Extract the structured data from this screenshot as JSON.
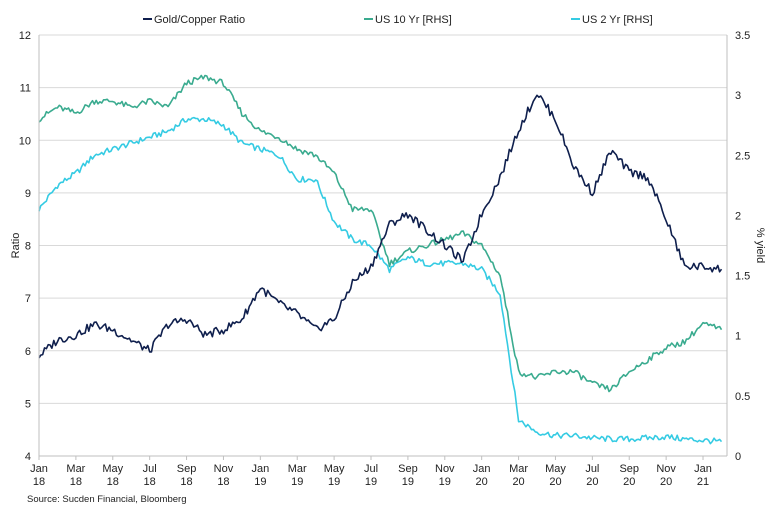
{
  "chart_data": {
    "type": "line",
    "legend": [
      {
        "name": "Gold/Copper Ratio",
        "color": "#0f1f4d"
      },
      {
        "name": "US 10 Yr [RHS]",
        "color": "#3aab8f"
      },
      {
        "name": "US 2 Yr [RHS]",
        "color": "#35cbe3"
      }
    ],
    "legend_position": "top",
    "ylabel_left": "Ratio",
    "ylabel_right": "% yield",
    "ylim_left": [
      4,
      12
    ],
    "ylim_right": [
      0,
      3.5
    ],
    "yticks_left": [
      "4",
      "5",
      "6",
      "7",
      "8",
      "9",
      "10",
      "11",
      "12"
    ],
    "yticks_right": [
      "0",
      "0.5",
      "1",
      "1.5",
      "2",
      "2.5",
      "3",
      "3.5"
    ],
    "grid": "horizontal",
    "x_ticks": [
      [
        "Jan",
        "18"
      ],
      [
        "Mar",
        "18"
      ],
      [
        "May",
        "18"
      ],
      [
        "Jul",
        "18"
      ],
      [
        "Sep",
        "18"
      ],
      [
        "Nov",
        "18"
      ],
      [
        "Jan",
        "19"
      ],
      [
        "Mar",
        "19"
      ],
      [
        "May",
        "19"
      ],
      [
        "Jul",
        "19"
      ],
      [
        "Sep",
        "19"
      ],
      [
        "Nov",
        "19"
      ],
      [
        "Jan",
        "20"
      ],
      [
        "Mar",
        "20"
      ],
      [
        "May",
        "20"
      ],
      [
        "Jul",
        "20"
      ],
      [
        "Sep",
        "20"
      ],
      [
        "Nov",
        "20"
      ],
      [
        "Jan",
        "21"
      ]
    ],
    "series": [
      {
        "name": "Gold/Copper Ratio",
        "axis": "left",
        "color": "#0f1f4d",
        "points": [
          [
            "2018-01",
            5.9
          ],
          [
            "2018-02",
            6.2
          ],
          [
            "2018-03",
            6.3
          ],
          [
            "2018-04",
            6.5
          ],
          [
            "2018-05",
            6.4
          ],
          [
            "2018-06",
            6.2
          ],
          [
            "2018-07",
            6.0
          ],
          [
            "2018-08",
            6.5
          ],
          [
            "2018-09",
            6.6
          ],
          [
            "2018-10",
            6.3
          ],
          [
            "2018-11",
            6.4
          ],
          [
            "2018-12",
            6.6
          ],
          [
            "2019-01",
            7.2
          ],
          [
            "2019-02",
            6.9
          ],
          [
            "2019-03",
            6.7
          ],
          [
            "2019-04",
            6.4
          ],
          [
            "2019-05",
            6.6
          ],
          [
            "2019-06",
            7.3
          ],
          [
            "2019-07",
            7.6
          ],
          [
            "2019-08",
            8.4
          ],
          [
            "2019-09",
            8.6
          ],
          [
            "2019-10",
            8.3
          ],
          [
            "2019-11",
            8.0
          ],
          [
            "2019-12",
            7.7
          ],
          [
            "2020-01",
            8.6
          ],
          [
            "2020-02",
            9.3
          ],
          [
            "2020-03",
            10.2
          ],
          [
            "2020-04",
            10.9
          ],
          [
            "2020-05",
            10.4
          ],
          [
            "2020-06",
            9.5
          ],
          [
            "2020-07",
            9.0
          ],
          [
            "2020-08",
            9.8
          ],
          [
            "2020-09",
            9.4
          ],
          [
            "2020-10",
            9.3
          ],
          [
            "2020-11",
            8.5
          ],
          [
            "2020-12",
            7.6
          ],
          [
            "2021-01",
            7.6
          ],
          [
            "2021-02",
            7.55
          ]
        ]
      },
      {
        "name": "US 10 Yr [RHS]",
        "axis": "right",
        "color": "#3aab8f",
        "points": [
          [
            "2018-01",
            2.8
          ],
          [
            "2018-02",
            2.9
          ],
          [
            "2018-03",
            2.85
          ],
          [
            "2018-04",
            2.95
          ],
          [
            "2018-05",
            2.95
          ],
          [
            "2018-06",
            2.9
          ],
          [
            "2018-07",
            2.95
          ],
          [
            "2018-08",
            2.9
          ],
          [
            "2018-09",
            3.1
          ],
          [
            "2018-10",
            3.15
          ],
          [
            "2018-11",
            3.1
          ],
          [
            "2018-12",
            2.85
          ],
          [
            "2019-01",
            2.7
          ],
          [
            "2019-02",
            2.65
          ],
          [
            "2019-03",
            2.55
          ],
          [
            "2019-04",
            2.5
          ],
          [
            "2019-05",
            2.35
          ],
          [
            "2019-06",
            2.05
          ],
          [
            "2019-07",
            2.05
          ],
          [
            "2019-08",
            1.6
          ],
          [
            "2019-09",
            1.7
          ],
          [
            "2019-10",
            1.75
          ],
          [
            "2019-11",
            1.8
          ],
          [
            "2019-12",
            1.85
          ],
          [
            "2020-01",
            1.75
          ],
          [
            "2020-02",
            1.5
          ],
          [
            "2020-03",
            0.7
          ],
          [
            "2020-04",
            0.65
          ],
          [
            "2020-05",
            0.7
          ],
          [
            "2020-06",
            0.7
          ],
          [
            "2020-07",
            0.6
          ],
          [
            "2020-08",
            0.55
          ],
          [
            "2020-09",
            0.7
          ],
          [
            "2020-10",
            0.8
          ],
          [
            "2020-11",
            0.9
          ],
          [
            "2020-12",
            0.95
          ],
          [
            "2021-01",
            1.1
          ],
          [
            "2021-02",
            1.05
          ]
        ]
      },
      {
        "name": "US 2 Yr [RHS]",
        "axis": "right",
        "color": "#35cbe3",
        "points": [
          [
            "2018-01",
            2.05
          ],
          [
            "2018-02",
            2.25
          ],
          [
            "2018-03",
            2.35
          ],
          [
            "2018-04",
            2.5
          ],
          [
            "2018-05",
            2.55
          ],
          [
            "2018-06",
            2.6
          ],
          [
            "2018-07",
            2.65
          ],
          [
            "2018-08",
            2.7
          ],
          [
            "2018-09",
            2.8
          ],
          [
            "2018-10",
            2.8
          ],
          [
            "2018-11",
            2.75
          ],
          [
            "2018-12",
            2.6
          ],
          [
            "2019-01",
            2.55
          ],
          [
            "2019-02",
            2.5
          ],
          [
            "2019-03",
            2.3
          ],
          [
            "2019-04",
            2.3
          ],
          [
            "2019-05",
            1.95
          ],
          [
            "2019-06",
            1.8
          ],
          [
            "2019-07",
            1.75
          ],
          [
            "2019-08",
            1.55
          ],
          [
            "2019-09",
            1.65
          ],
          [
            "2019-10",
            1.6
          ],
          [
            "2019-11",
            1.6
          ],
          [
            "2019-12",
            1.6
          ],
          [
            "2020-01",
            1.55
          ],
          [
            "2020-02",
            1.35
          ],
          [
            "2020-03",
            0.3
          ],
          [
            "2020-04",
            0.2
          ],
          [
            "2020-05",
            0.17
          ],
          [
            "2020-06",
            0.17
          ],
          [
            "2020-07",
            0.15
          ],
          [
            "2020-08",
            0.14
          ],
          [
            "2020-09",
            0.14
          ],
          [
            "2020-10",
            0.15
          ],
          [
            "2020-11",
            0.16
          ],
          [
            "2020-12",
            0.14
          ],
          [
            "2021-01",
            0.13
          ],
          [
            "2021-02",
            0.12
          ]
        ]
      }
    ]
  },
  "source": "Source: Sucden Financial, Bloomberg"
}
